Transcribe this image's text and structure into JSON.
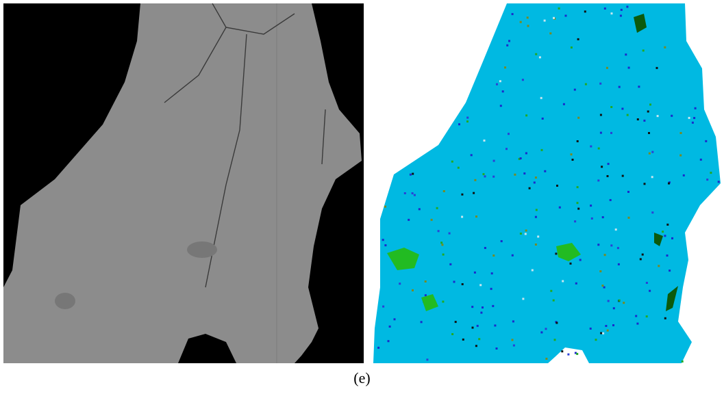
{
  "caption": "(e)"
}
